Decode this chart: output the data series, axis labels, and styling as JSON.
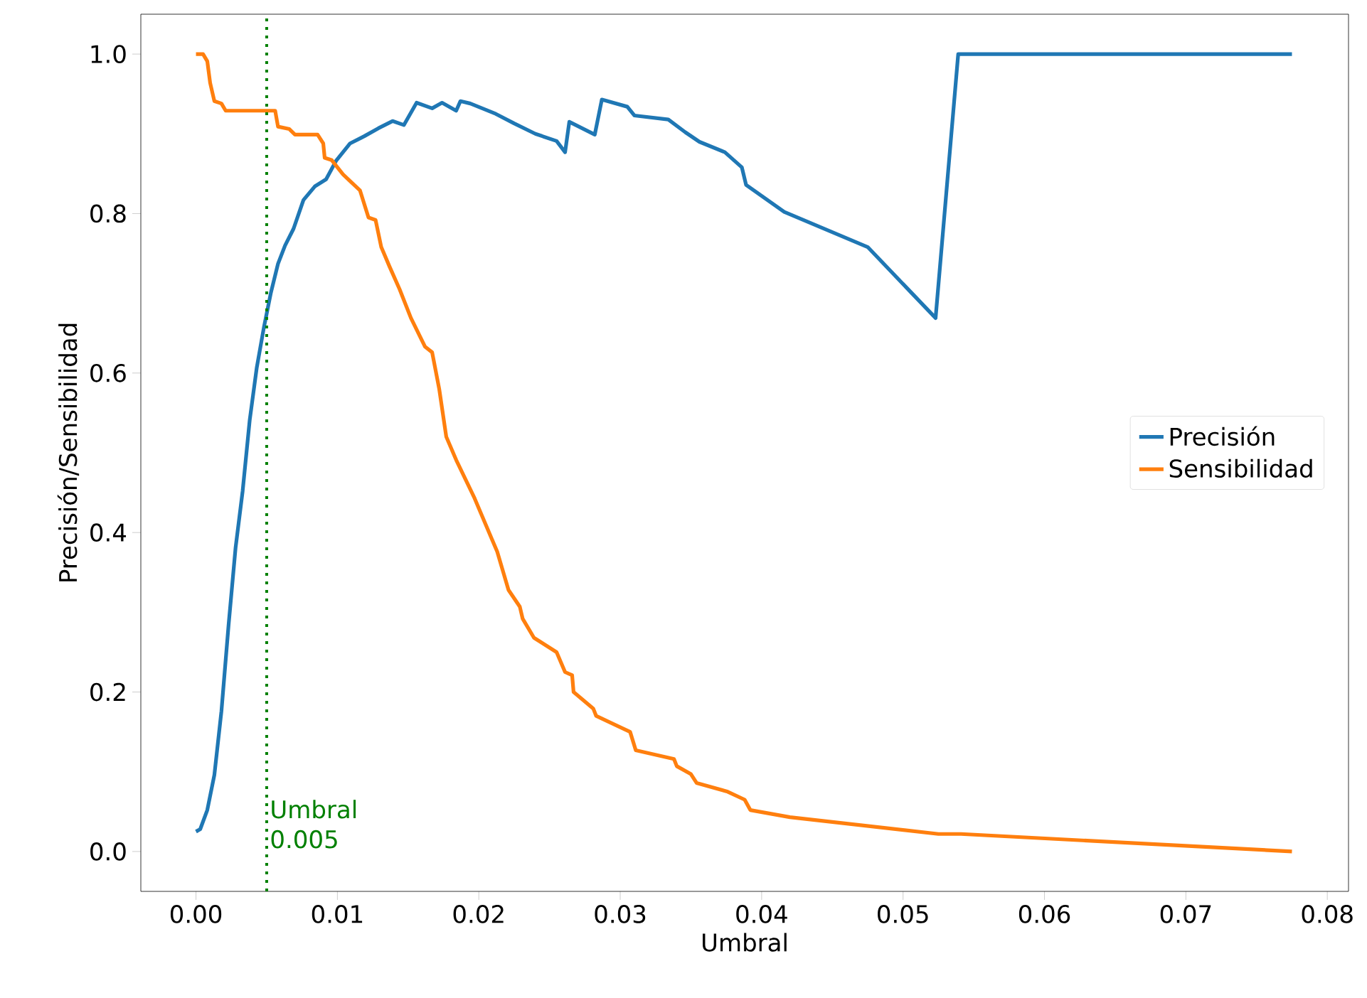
{
  "chart_data": {
    "type": "line",
    "xlabel": "Umbral",
    "ylabel": "Precisión/Sensibilidad",
    "xlim": [
      -0.0039,
      0.0815
    ],
    "ylim": [
      -0.05,
      1.05
    ],
    "xticks": [
      {
        "value": 0,
        "label": "0.00"
      },
      {
        "value": 0.01,
        "label": "0.01"
      },
      {
        "value": 0.02,
        "label": "0.02"
      },
      {
        "value": 0.03,
        "label": "0.03"
      },
      {
        "value": 0.04,
        "label": "0.04"
      },
      {
        "value": 0.05,
        "label": "0.05"
      },
      {
        "value": 0.06,
        "label": "0.06"
      },
      {
        "value": 0.07,
        "label": "0.07"
      },
      {
        "value": 0.08,
        "label": "0.08"
      }
    ],
    "yticks": [
      {
        "value": 0,
        "label": "0.0"
      },
      {
        "value": 0.2,
        "label": "0.2"
      },
      {
        "value": 0.4,
        "label": "0.4"
      },
      {
        "value": 0.6,
        "label": "0.6"
      },
      {
        "value": 0.8,
        "label": "0.8"
      },
      {
        "value": 1,
        "label": "1.0"
      }
    ],
    "grid": false,
    "legend": "right",
    "line_style": "solid",
    "ref_lines": [
      {
        "axis": "x",
        "value": 0.005,
        "label": "Umbral 0.005",
        "color": "#008000",
        "line_style": "dotted"
      }
    ],
    "series": [
      {
        "name": "Precisión",
        "color": "#1f77b4",
        "x": [
          0.0,
          0.0003,
          0.0008,
          0.0013,
          0.0018,
          0.0023,
          0.0028,
          0.0033,
          0.0038,
          0.0043,
          0.0048,
          0.0053,
          0.0058,
          0.0063,
          0.0069,
          0.0076,
          0.0084,
          0.0092,
          0.0099,
          0.0109,
          0.0119,
          0.0129,
          0.0139,
          0.0147,
          0.0156,
          0.0167,
          0.0174,
          0.0184,
          0.0187,
          0.0194,
          0.0212,
          0.0225,
          0.024,
          0.0255,
          0.0261,
          0.0264,
          0.0282,
          0.0287,
          0.0305,
          0.031,
          0.0334,
          0.0346,
          0.0356,
          0.0374,
          0.0386,
          0.0389,
          0.0416,
          0.0475,
          0.0523,
          0.0539,
          0.0775
        ],
        "values": [
          0.025,
          0.028,
          0.052,
          0.096,
          0.176,
          0.283,
          0.381,
          0.452,
          0.541,
          0.607,
          0.657,
          0.701,
          0.737,
          0.76,
          0.781,
          0.817,
          0.834,
          0.843,
          0.866,
          0.888,
          0.897,
          0.907,
          0.916,
          0.911,
          0.939,
          0.932,
          0.939,
          0.929,
          0.941,
          0.938,
          0.925,
          0.913,
          0.9,
          0.891,
          0.877,
          0.915,
          0.899,
          0.943,
          0.934,
          0.923,
          0.918,
          0.902,
          0.89,
          0.877,
          0.858,
          0.836,
          0.802,
          0.758,
          0.669,
          1.0,
          1.0
        ]
      },
      {
        "name": "Sensibilidad",
        "color": "#ff7f0e",
        "x": [
          0.0,
          0.0005,
          0.0008,
          0.001,
          0.0013,
          0.0018,
          0.0021,
          0.0056,
          0.0058,
          0.0066,
          0.007,
          0.0086,
          0.009,
          0.0091,
          0.0096,
          0.0104,
          0.0116,
          0.0122,
          0.0127,
          0.0131,
          0.0137,
          0.0144,
          0.0152,
          0.0162,
          0.0167,
          0.0172,
          0.0177,
          0.0184,
          0.0197,
          0.0213,
          0.0221,
          0.0229,
          0.0231,
          0.0239,
          0.0255,
          0.0261,
          0.0266,
          0.0267,
          0.0281,
          0.0283,
          0.0307,
          0.0311,
          0.0338,
          0.034,
          0.035,
          0.0354,
          0.0376,
          0.0388,
          0.0392,
          0.042,
          0.0525,
          0.0541,
          0.0775
        ],
        "values": [
          1.0,
          1.0,
          0.991,
          0.964,
          0.941,
          0.938,
          0.929,
          0.929,
          0.909,
          0.906,
          0.899,
          0.899,
          0.888,
          0.87,
          0.867,
          0.849,
          0.829,
          0.795,
          0.792,
          0.758,
          0.733,
          0.705,
          0.669,
          0.633,
          0.626,
          0.58,
          0.52,
          0.491,
          0.443,
          0.376,
          0.328,
          0.307,
          0.292,
          0.268,
          0.25,
          0.225,
          0.221,
          0.2,
          0.179,
          0.17,
          0.15,
          0.127,
          0.116,
          0.107,
          0.097,
          0.086,
          0.075,
          0.065,
          0.052,
          0.043,
          0.022,
          0.022,
          0.0
        ]
      }
    ]
  }
}
